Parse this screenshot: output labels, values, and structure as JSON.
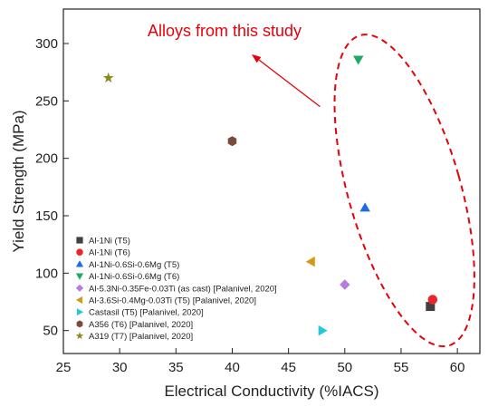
{
  "chart_data": {
    "type": "scatter",
    "title": "",
    "xlabel": "Electrical Conductivity (%IACS)",
    "ylabel": "Yield Strength (MPa)",
    "xlim": [
      25,
      62
    ],
    "ylim": [
      30,
      330
    ],
    "xticks": [
      25,
      30,
      35,
      40,
      45,
      50,
      55,
      60
    ],
    "yticks": [
      50,
      100,
      150,
      200,
      250,
      300
    ],
    "grid": false,
    "legend_position": "bottom-left",
    "annotation": {
      "text": "Alloys from this study",
      "ellipse_center": [
        55.3,
        172
      ],
      "ellipse_angle_deg": -16,
      "arrow_from": [
        47.8,
        245
      ],
      "arrow_to": [
        41.8,
        290
      ]
    },
    "series": [
      {
        "name": "Al-1Ni (T5)",
        "marker": "square",
        "color": "#404040",
        "x": [
          57.6
        ],
        "y": [
          71
        ]
      },
      {
        "name": "Al-1Ni (T6)",
        "marker": "circle",
        "color": "#e8262b",
        "x": [
          57.8
        ],
        "y": [
          77
        ]
      },
      {
        "name": "Al-1Ni-0.6Si-0.6Mg (T5)",
        "marker": "triangle-up",
        "color": "#1a6fe0",
        "x": [
          51.8
        ],
        "y": [
          157
        ]
      },
      {
        "name": "Al-1Ni-0.6Si-0.6Mg (T6)",
        "marker": "triangle-down",
        "color": "#1faa64",
        "x": [
          51.2
        ],
        "y": [
          286
        ]
      },
      {
        "name": "Al-5.3Ni-0.35Fe-0.03Ti (as cast) [Palanivel, 2020]",
        "marker": "diamond",
        "color": "#b57de0",
        "x": [
          50.0
        ],
        "y": [
          90
        ]
      },
      {
        "name": "Al-3.6Si-0.4Mg-0.03Ti (T5) [Palanivel, 2020]",
        "marker": "triangle-left",
        "color": "#d19a17",
        "x": [
          47.0
        ],
        "y": [
          110
        ]
      },
      {
        "name": "Castasil (T5) [Palanivel, 2020]",
        "marker": "triangle-right",
        "color": "#27c6d8",
        "x": [
          48.0
        ],
        "y": [
          50
        ]
      },
      {
        "name": "A356 (T6) [Palanivel, 2020]",
        "marker": "hexagon",
        "color": "#7a4a3c",
        "x": [
          40.0
        ],
        "y": [
          215
        ]
      },
      {
        "name": "A319 (T7) [Palanivel, 2020]",
        "marker": "star",
        "color": "#8a8a1e",
        "x": [
          29.0
        ],
        "y": [
          270
        ]
      }
    ]
  }
}
